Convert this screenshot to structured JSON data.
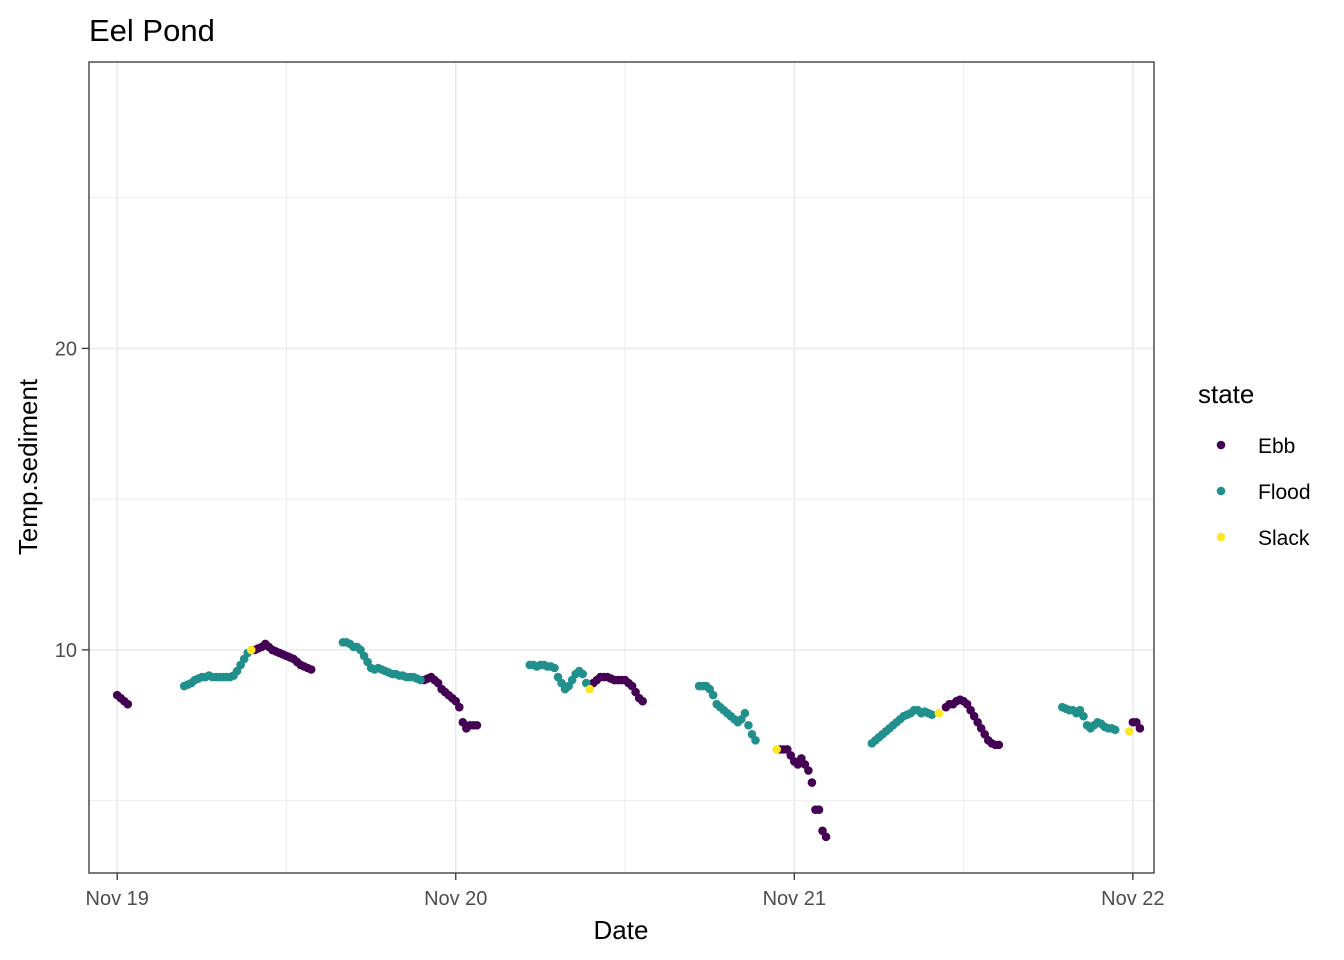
{
  "chart_data": {
    "type": "scatter",
    "title": "Eel Pond",
    "xlabel": "Date",
    "ylabel": "Temp.sediment",
    "x_axis": {
      "type": "date",
      "ticks": [
        {
          "value": "2023-11-19",
          "label": "Nov 19"
        },
        {
          "value": "2023-11-20",
          "label": "Nov 20"
        },
        {
          "value": "2023-11-21",
          "label": "Nov 21"
        },
        {
          "value": "2023-11-22",
          "label": "Nov 22"
        }
      ],
      "range": [
        "2023-11-18T22:00",
        "2023-11-22T01:30"
      ]
    },
    "y_axis": {
      "ticks": [
        10,
        20
      ],
      "range": [
        2.6,
        29.5
      ]
    },
    "grid": true,
    "legend": {
      "title": "state",
      "placement": "right",
      "entries": [
        {
          "name": "Ebb",
          "color": "#440154"
        },
        {
          "name": "Flood",
          "color": "#21908C"
        },
        {
          "name": "Slack",
          "color": "#FDE725"
        }
      ]
    },
    "series": [
      {
        "name": "Ebb",
        "color": "#440154",
        "points": [
          [
            "2023-11-19T00:00",
            8.5
          ],
          [
            "2023-11-19T00:15",
            8.4
          ],
          [
            "2023-11-19T00:30",
            8.3
          ],
          [
            "2023-11-19T00:45",
            8.2
          ],
          [
            "2023-11-19T09:45",
            10.0
          ],
          [
            "2023-11-19T10:00",
            10.05
          ],
          [
            "2023-11-19T10:15",
            10.1
          ],
          [
            "2023-11-19T10:30",
            10.2
          ],
          [
            "2023-11-19T10:45",
            10.1
          ],
          [
            "2023-11-19T11:00",
            10.0
          ],
          [
            "2023-11-19T11:15",
            9.95
          ],
          [
            "2023-11-19T11:30",
            9.9
          ],
          [
            "2023-11-19T11:45",
            9.85
          ],
          [
            "2023-11-19T12:00",
            9.8
          ],
          [
            "2023-11-19T12:15",
            9.75
          ],
          [
            "2023-11-19T12:30",
            9.7
          ],
          [
            "2023-11-19T12:45",
            9.6
          ],
          [
            "2023-11-19T13:00",
            9.5
          ],
          [
            "2023-11-19T13:15",
            9.45
          ],
          [
            "2023-11-19T13:30",
            9.4
          ],
          [
            "2023-11-19T13:45",
            9.35
          ],
          [
            "2023-11-19T21:45",
            9.0
          ],
          [
            "2023-11-19T22:00",
            9.05
          ],
          [
            "2023-11-19T22:15",
            9.1
          ],
          [
            "2023-11-19T22:30",
            9.0
          ],
          [
            "2023-11-19T22:45",
            8.9
          ],
          [
            "2023-11-19T23:00",
            8.7
          ],
          [
            "2023-11-19T23:15",
            8.6
          ],
          [
            "2023-11-19T23:30",
            8.5
          ],
          [
            "2023-11-19T23:45",
            8.4
          ],
          [
            "2023-11-20T00:00",
            8.3
          ],
          [
            "2023-11-20T00:15",
            8.1
          ],
          [
            "2023-11-20T00:30",
            7.6
          ],
          [
            "2023-11-20T00:45",
            7.4
          ],
          [
            "2023-11-20T01:00",
            7.5
          ],
          [
            "2023-11-20T01:15",
            7.5
          ],
          [
            "2023-11-20T01:30",
            7.5
          ],
          [
            "2023-11-20T09:45",
            8.9
          ],
          [
            "2023-11-20T10:00",
            9.0
          ],
          [
            "2023-11-20T10:15",
            9.1
          ],
          [
            "2023-11-20T10:30",
            9.1
          ],
          [
            "2023-11-20T10:45",
            9.1
          ],
          [
            "2023-11-20T11:00",
            9.05
          ],
          [
            "2023-11-20T11:15",
            9.0
          ],
          [
            "2023-11-20T11:30",
            9.0
          ],
          [
            "2023-11-20T11:45",
            9.0
          ],
          [
            "2023-11-20T12:00",
            9.0
          ],
          [
            "2023-11-20T12:15",
            8.9
          ],
          [
            "2023-11-20T12:30",
            8.8
          ],
          [
            "2023-11-20T12:45",
            8.6
          ],
          [
            "2023-11-20T13:00",
            8.4
          ],
          [
            "2023-11-20T13:15",
            8.3
          ],
          [
            "2023-11-20T23:00",
            6.7
          ],
          [
            "2023-11-20T23:15",
            6.7
          ],
          [
            "2023-11-20T23:30",
            6.7
          ],
          [
            "2023-11-20T23:45",
            6.5
          ],
          [
            "2023-11-21T00:00",
            6.3
          ],
          [
            "2023-11-21T00:15",
            6.2
          ],
          [
            "2023-11-21T00:30",
            6.4
          ],
          [
            "2023-11-21T00:45",
            6.2
          ],
          [
            "2023-11-21T01:00",
            6.0
          ],
          [
            "2023-11-21T01:15",
            5.6
          ],
          [
            "2023-11-21T01:30",
            4.7
          ],
          [
            "2023-11-21T01:45",
            4.7
          ],
          [
            "2023-11-21T02:00",
            4.0
          ],
          [
            "2023-11-21T02:15",
            3.8
          ],
          [
            "2023-11-21T10:45",
            8.1
          ],
          [
            "2023-11-21T11:00",
            8.2
          ],
          [
            "2023-11-21T11:15",
            8.2
          ],
          [
            "2023-11-21T11:30",
            8.3
          ],
          [
            "2023-11-21T11:45",
            8.35
          ],
          [
            "2023-11-21T12:00",
            8.3
          ],
          [
            "2023-11-21T12:15",
            8.2
          ],
          [
            "2023-11-21T12:30",
            8.0
          ],
          [
            "2023-11-21T12:45",
            7.8
          ],
          [
            "2023-11-21T13:00",
            7.6
          ],
          [
            "2023-11-21T13:15",
            7.4
          ],
          [
            "2023-11-21T13:30",
            7.2
          ],
          [
            "2023-11-21T13:45",
            7.0
          ],
          [
            "2023-11-21T14:00",
            6.9
          ],
          [
            "2023-11-21T14:15",
            6.85
          ],
          [
            "2023-11-21T14:30",
            6.85
          ],
          [
            "2023-11-22T00:00",
            7.6
          ],
          [
            "2023-11-22T00:15",
            7.6
          ],
          [
            "2023-11-22T00:30",
            7.4
          ]
        ]
      },
      {
        "name": "Flood",
        "color": "#21908C",
        "points": [
          [
            "2023-11-19T04:45",
            8.8
          ],
          [
            "2023-11-19T05:00",
            8.85
          ],
          [
            "2023-11-19T05:15",
            8.9
          ],
          [
            "2023-11-19T05:30",
            9.0
          ],
          [
            "2023-11-19T05:45",
            9.05
          ],
          [
            "2023-11-19T06:00",
            9.1
          ],
          [
            "2023-11-19T06:15",
            9.1
          ],
          [
            "2023-11-19T06:30",
            9.15
          ],
          [
            "2023-11-19T06:45",
            9.1
          ],
          [
            "2023-11-19T07:00",
            9.1
          ],
          [
            "2023-11-19T07:15",
            9.1
          ],
          [
            "2023-11-19T07:30",
            9.1
          ],
          [
            "2023-11-19T07:45",
            9.1
          ],
          [
            "2023-11-19T08:00",
            9.1
          ],
          [
            "2023-11-19T08:15",
            9.15
          ],
          [
            "2023-11-19T08:30",
            9.3
          ],
          [
            "2023-11-19T08:45",
            9.5
          ],
          [
            "2023-11-19T09:00",
            9.7
          ],
          [
            "2023-11-19T09:15",
            9.9
          ],
          [
            "2023-11-19T16:00",
            10.25
          ],
          [
            "2023-11-19T16:15",
            10.25
          ],
          [
            "2023-11-19T16:30",
            10.2
          ],
          [
            "2023-11-19T16:45",
            10.1
          ],
          [
            "2023-11-19T17:00",
            10.1
          ],
          [
            "2023-11-19T17:15",
            10.0
          ],
          [
            "2023-11-19T17:30",
            9.8
          ],
          [
            "2023-11-19T17:45",
            9.6
          ],
          [
            "2023-11-19T18:00",
            9.4
          ],
          [
            "2023-11-19T18:15",
            9.35
          ],
          [
            "2023-11-19T18:30",
            9.4
          ],
          [
            "2023-11-19T18:45",
            9.35
          ],
          [
            "2023-11-19T19:00",
            9.3
          ],
          [
            "2023-11-19T19:15",
            9.25
          ],
          [
            "2023-11-19T19:30",
            9.2
          ],
          [
            "2023-11-19T19:45",
            9.2
          ],
          [
            "2023-11-19T20:00",
            9.15
          ],
          [
            "2023-11-19T20:15",
            9.15
          ],
          [
            "2023-11-19T20:30",
            9.1
          ],
          [
            "2023-11-19T20:45",
            9.1
          ],
          [
            "2023-11-19T21:00",
            9.1
          ],
          [
            "2023-11-19T21:15",
            9.05
          ],
          [
            "2023-11-19T21:30",
            9.0
          ],
          [
            "2023-11-20T05:15",
            9.5
          ],
          [
            "2023-11-20T05:30",
            9.5
          ],
          [
            "2023-11-20T05:45",
            9.45
          ],
          [
            "2023-11-20T06:00",
            9.5
          ],
          [
            "2023-11-20T06:15",
            9.5
          ],
          [
            "2023-11-20T06:30",
            9.45
          ],
          [
            "2023-11-20T06:45",
            9.45
          ],
          [
            "2023-11-20T07:00",
            9.4
          ],
          [
            "2023-11-20T07:15",
            9.1
          ],
          [
            "2023-11-20T07:30",
            8.9
          ],
          [
            "2023-11-20T07:45",
            8.7
          ],
          [
            "2023-11-20T08:00",
            8.8
          ],
          [
            "2023-11-20T08:15",
            9.0
          ],
          [
            "2023-11-20T08:30",
            9.2
          ],
          [
            "2023-11-20T08:45",
            9.3
          ],
          [
            "2023-11-20T09:00",
            9.2
          ],
          [
            "2023-11-20T09:15",
            8.9
          ],
          [
            "2023-11-20T17:15",
            8.8
          ],
          [
            "2023-11-20T17:30",
            8.8
          ],
          [
            "2023-11-20T17:45",
            8.8
          ],
          [
            "2023-11-20T18:00",
            8.7
          ],
          [
            "2023-11-20T18:15",
            8.5
          ],
          [
            "2023-11-20T18:30",
            8.2
          ],
          [
            "2023-11-20T18:45",
            8.1
          ],
          [
            "2023-11-20T19:00",
            8.0
          ],
          [
            "2023-11-20T19:15",
            7.9
          ],
          [
            "2023-11-20T19:30",
            7.8
          ],
          [
            "2023-11-20T19:45",
            7.7
          ],
          [
            "2023-11-20T20:00",
            7.6
          ],
          [
            "2023-11-20T20:15",
            7.7
          ],
          [
            "2023-11-20T20:30",
            7.9
          ],
          [
            "2023-11-20T20:45",
            7.5
          ],
          [
            "2023-11-20T21:00",
            7.2
          ],
          [
            "2023-11-20T21:15",
            7.0
          ],
          [
            "2023-11-21T05:30",
            6.9
          ],
          [
            "2023-11-21T05:45",
            7.0
          ],
          [
            "2023-11-21T06:00",
            7.1
          ],
          [
            "2023-11-21T06:15",
            7.2
          ],
          [
            "2023-11-21T06:30",
            7.3
          ],
          [
            "2023-11-21T06:45",
            7.4
          ],
          [
            "2023-11-21T07:00",
            7.5
          ],
          [
            "2023-11-21T07:15",
            7.6
          ],
          [
            "2023-11-21T07:30",
            7.7
          ],
          [
            "2023-11-21T07:45",
            7.8
          ],
          [
            "2023-11-21T08:00",
            7.85
          ],
          [
            "2023-11-21T08:15",
            7.9
          ],
          [
            "2023-11-21T08:30",
            8.0
          ],
          [
            "2023-11-21T08:45",
            8.0
          ],
          [
            "2023-11-21T09:00",
            7.9
          ],
          [
            "2023-11-21T09:15",
            7.95
          ],
          [
            "2023-11-21T09:30",
            7.9
          ],
          [
            "2023-11-21T09:45",
            7.85
          ],
          [
            "2023-11-21T19:00",
            8.1
          ],
          [
            "2023-11-21T19:15",
            8.05
          ],
          [
            "2023-11-21T19:30",
            8.0
          ],
          [
            "2023-11-21T19:45",
            8.0
          ],
          [
            "2023-11-21T20:00",
            7.9
          ],
          [
            "2023-11-21T20:15",
            8.0
          ],
          [
            "2023-11-21T20:30",
            7.8
          ],
          [
            "2023-11-21T20:45",
            7.5
          ],
          [
            "2023-11-21T21:00",
            7.4
          ],
          [
            "2023-11-21T21:15",
            7.5
          ],
          [
            "2023-11-21T21:30",
            7.6
          ],
          [
            "2023-11-21T21:45",
            7.55
          ],
          [
            "2023-11-21T22:00",
            7.45
          ],
          [
            "2023-11-21T22:15",
            7.4
          ],
          [
            "2023-11-21T22:30",
            7.4
          ],
          [
            "2023-11-21T22:45",
            7.35
          ]
        ]
      },
      {
        "name": "Slack",
        "color": "#FDE725",
        "points": [
          [
            "2023-11-19T09:30",
            10.0
          ],
          [
            "2023-11-20T09:30",
            8.7
          ],
          [
            "2023-11-20T22:45",
            6.7
          ],
          [
            "2023-11-21T10:15",
            7.9
          ],
          [
            "2023-11-21T23:45",
            7.3
          ]
        ]
      }
    ]
  }
}
